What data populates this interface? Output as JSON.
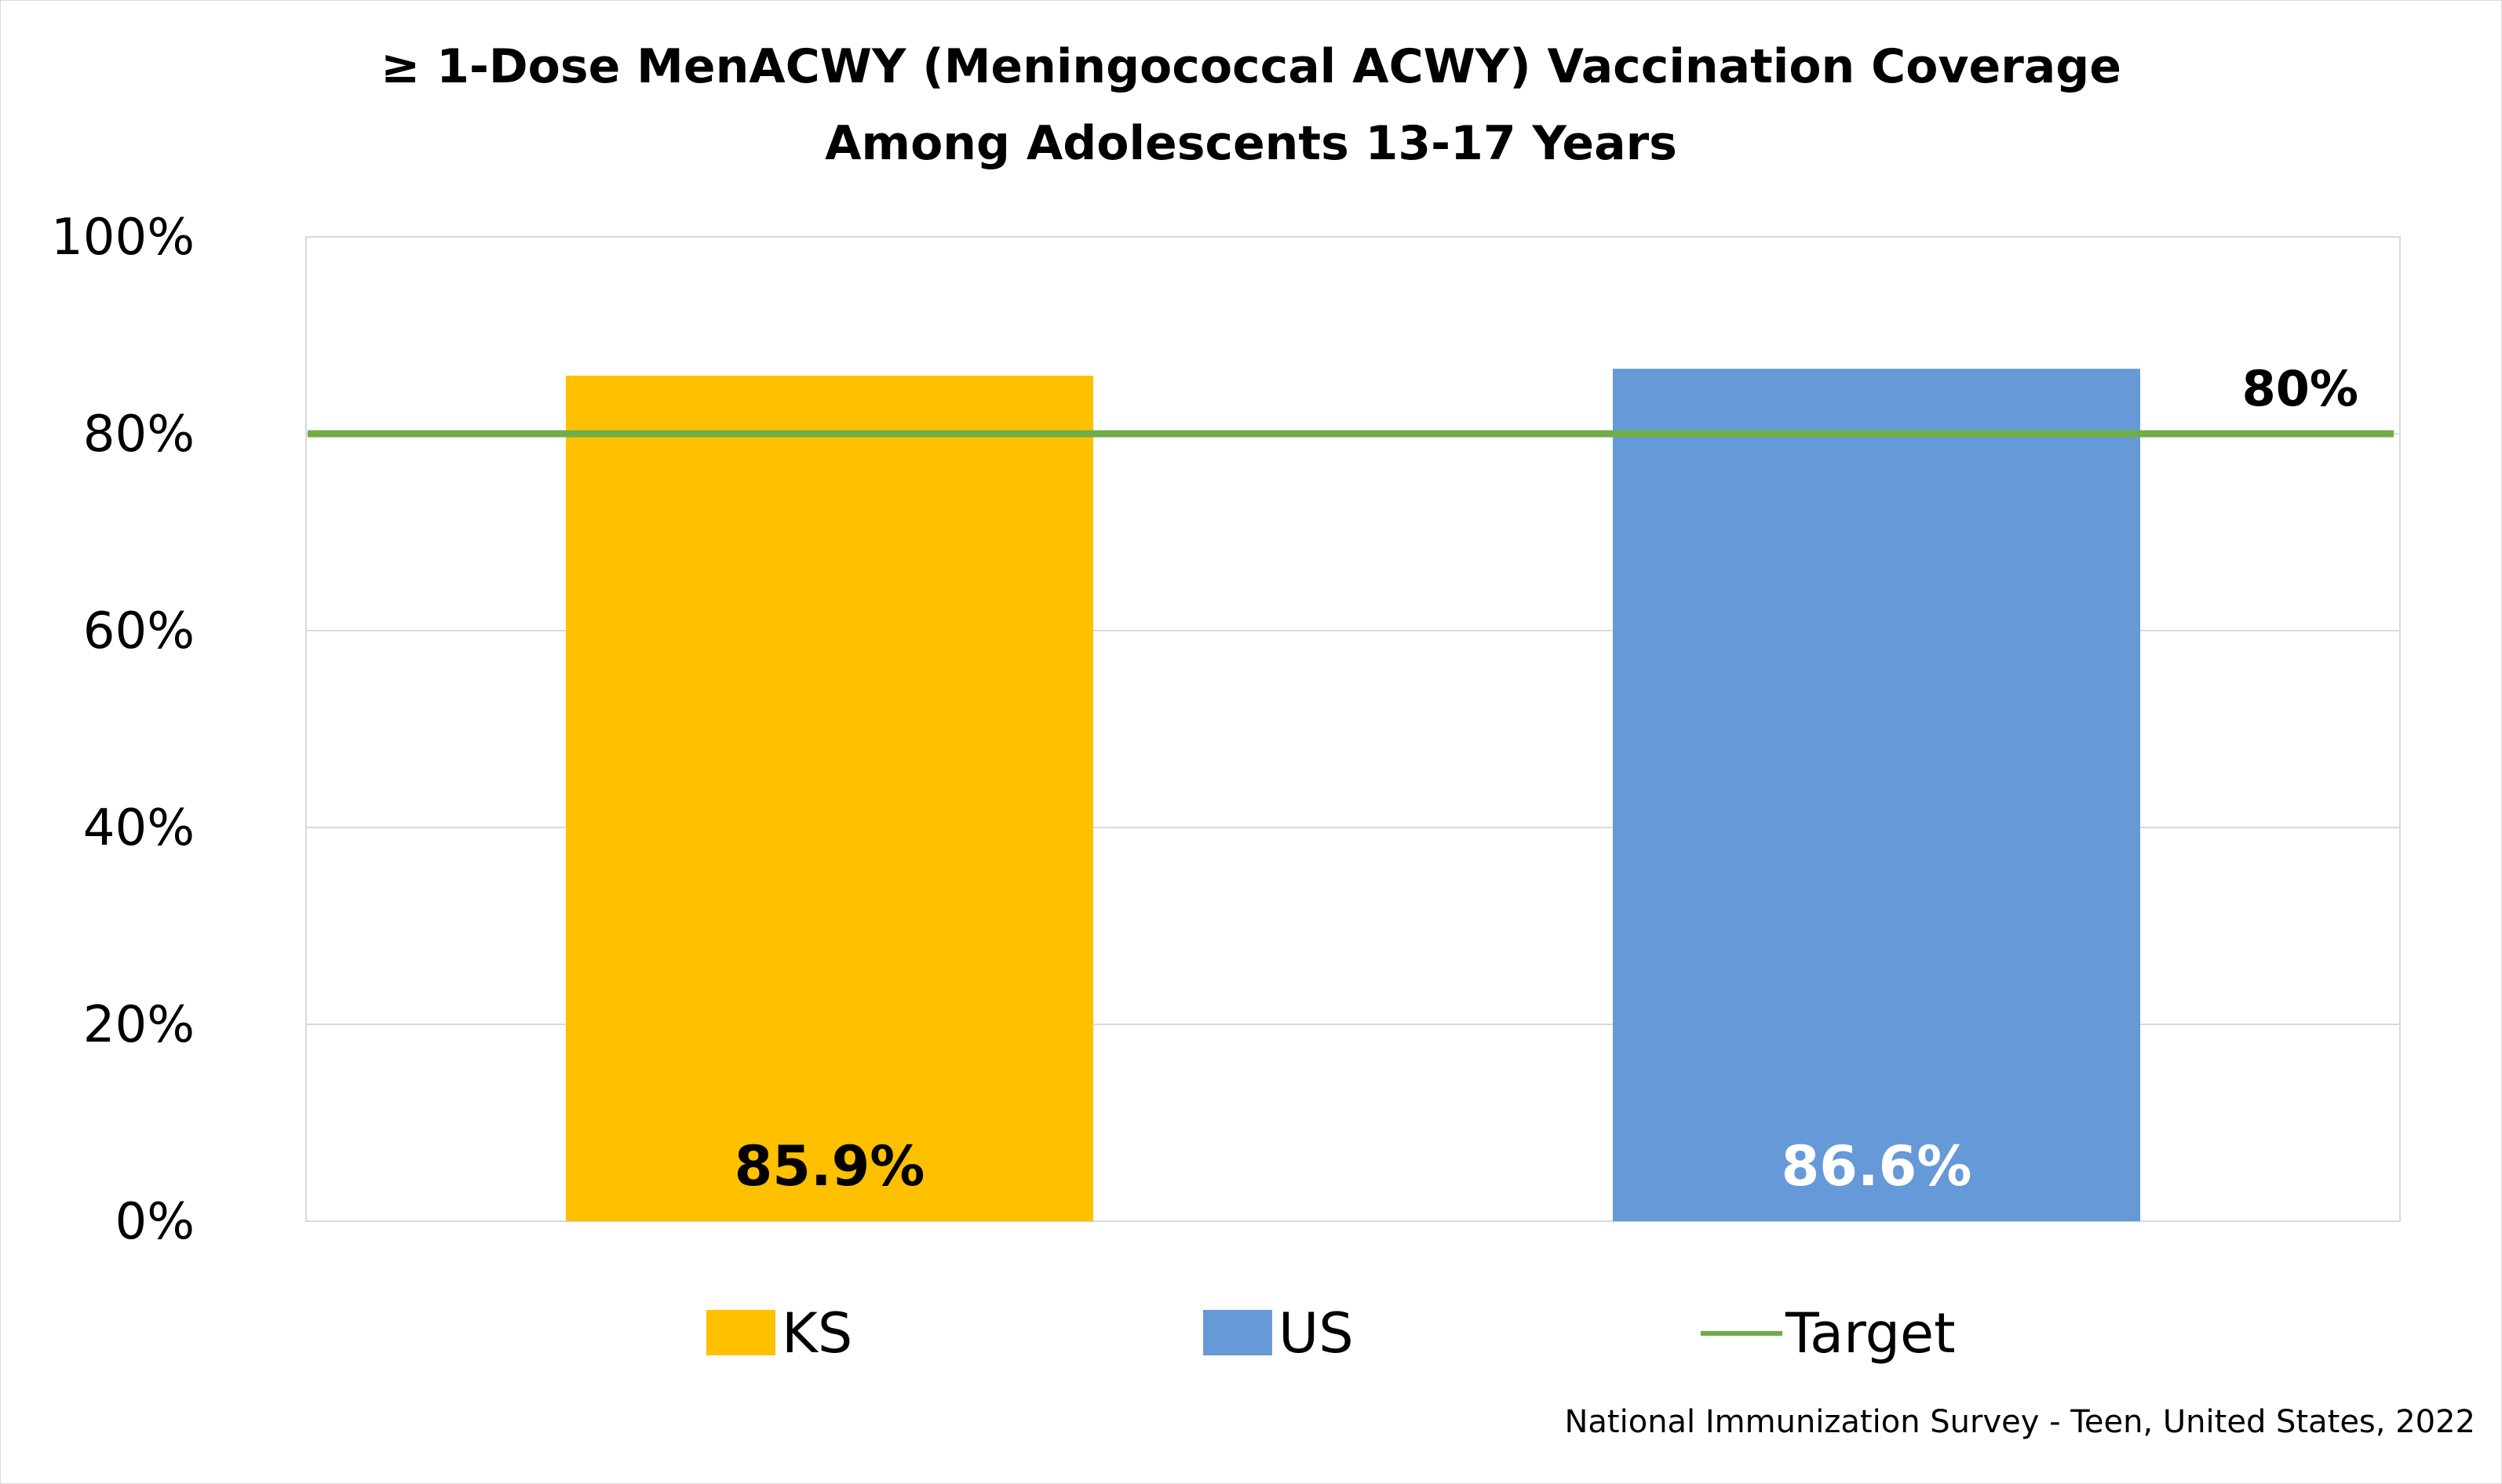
{
  "chart_data": {
    "type": "bar",
    "title": "≥ 1-Dose MenACWY (Meningococcal ACWY) Vaccination Coverage",
    "subtitle": "Among Adolescents 13-17 Years",
    "categories": [
      "KS",
      "US"
    ],
    "values": [
      85.9,
      86.6
    ],
    "data_labels": [
      "85.9%",
      "86.6%"
    ],
    "bar_colors": [
      "#FFC000",
      "#6699D8"
    ],
    "data_label_colors": [
      "#000000",
      "#ffffff"
    ],
    "target": {
      "name": "Target",
      "value": 80,
      "label": "80%",
      "color": "#70AD47"
    },
    "ylim": [
      0,
      100
    ],
    "yticks": [
      0,
      20,
      40,
      60,
      80,
      100
    ],
    "ytick_labels": [
      "0%",
      "20%",
      "40%",
      "60%",
      "80%",
      "100%"
    ],
    "grid": true,
    "gridline_color": "#d9d9d9",
    "legend": {
      "placement": "bottom",
      "entries": [
        {
          "label": "KS",
          "marker": "box",
          "color": "#FFC000"
        },
        {
          "label": "US",
          "marker": "box",
          "color": "#6699D8"
        },
        {
          "label": "Target",
          "marker": "line",
          "color": "#70AD47"
        }
      ]
    },
    "source": "National Immunization Survey - Teen, United States, 2022"
  }
}
